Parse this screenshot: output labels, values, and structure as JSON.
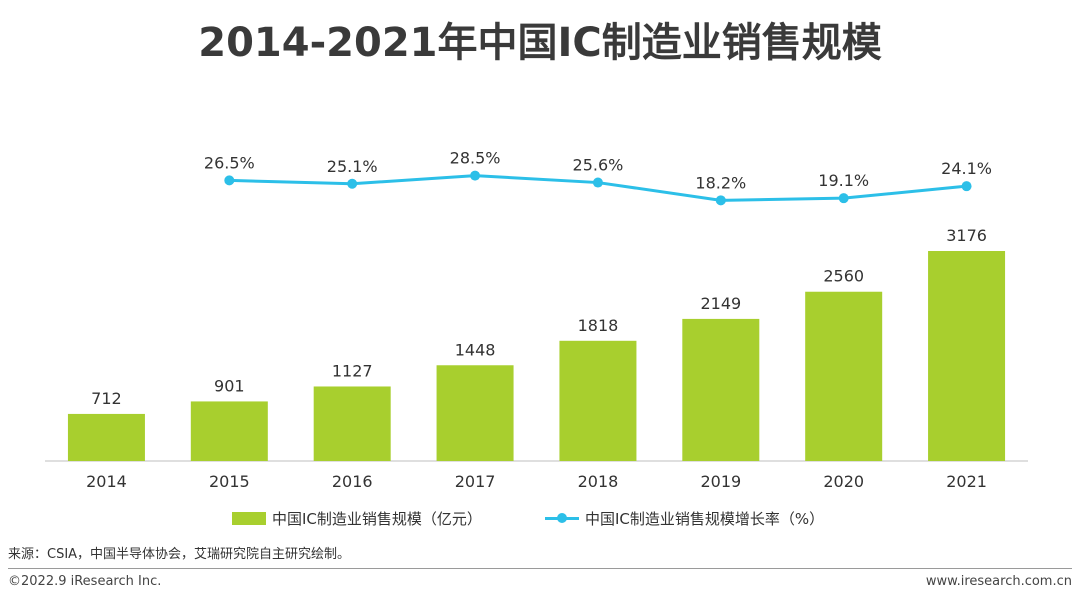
{
  "title": "2014-2021年中国IC制造业销售规模",
  "colors": {
    "bar": "#a8cf2e",
    "line": "#2cbfe8",
    "axis": "#bfbfbf",
    "text": "#333333"
  },
  "chart_data": {
    "type": "bar",
    "categories": [
      "2014",
      "2015",
      "2016",
      "2017",
      "2018",
      "2019",
      "2020",
      "2021"
    ],
    "series": [
      {
        "name": "中国IC制造业销售规模（亿元）",
        "type": "bar",
        "values": [
          712,
          901,
          1127,
          1448,
          1818,
          2149,
          2560,
          3176
        ],
        "labels": [
          "712",
          "901",
          "1127",
          "1448",
          "1818",
          "2149",
          "2560",
          "3176"
        ]
      },
      {
        "name": "中国IC制造业销售规模增长率（%）",
        "type": "line",
        "values": [
          null,
          26.5,
          25.1,
          28.5,
          25.6,
          18.2,
          19.1,
          24.1
        ],
        "labels": [
          "",
          "26.5%",
          "25.1%",
          "28.5%",
          "25.6%",
          "18.2%",
          "19.1%",
          "24.1%"
        ]
      }
    ],
    "legend": "bottom",
    "grid": false
  },
  "source": "来源：CSIA，中国半导体协会，艾瑞研究院自主研究绘制。",
  "copyright": "©2022.9 iResearch Inc.",
  "website": "www.iresearch.com.cn"
}
